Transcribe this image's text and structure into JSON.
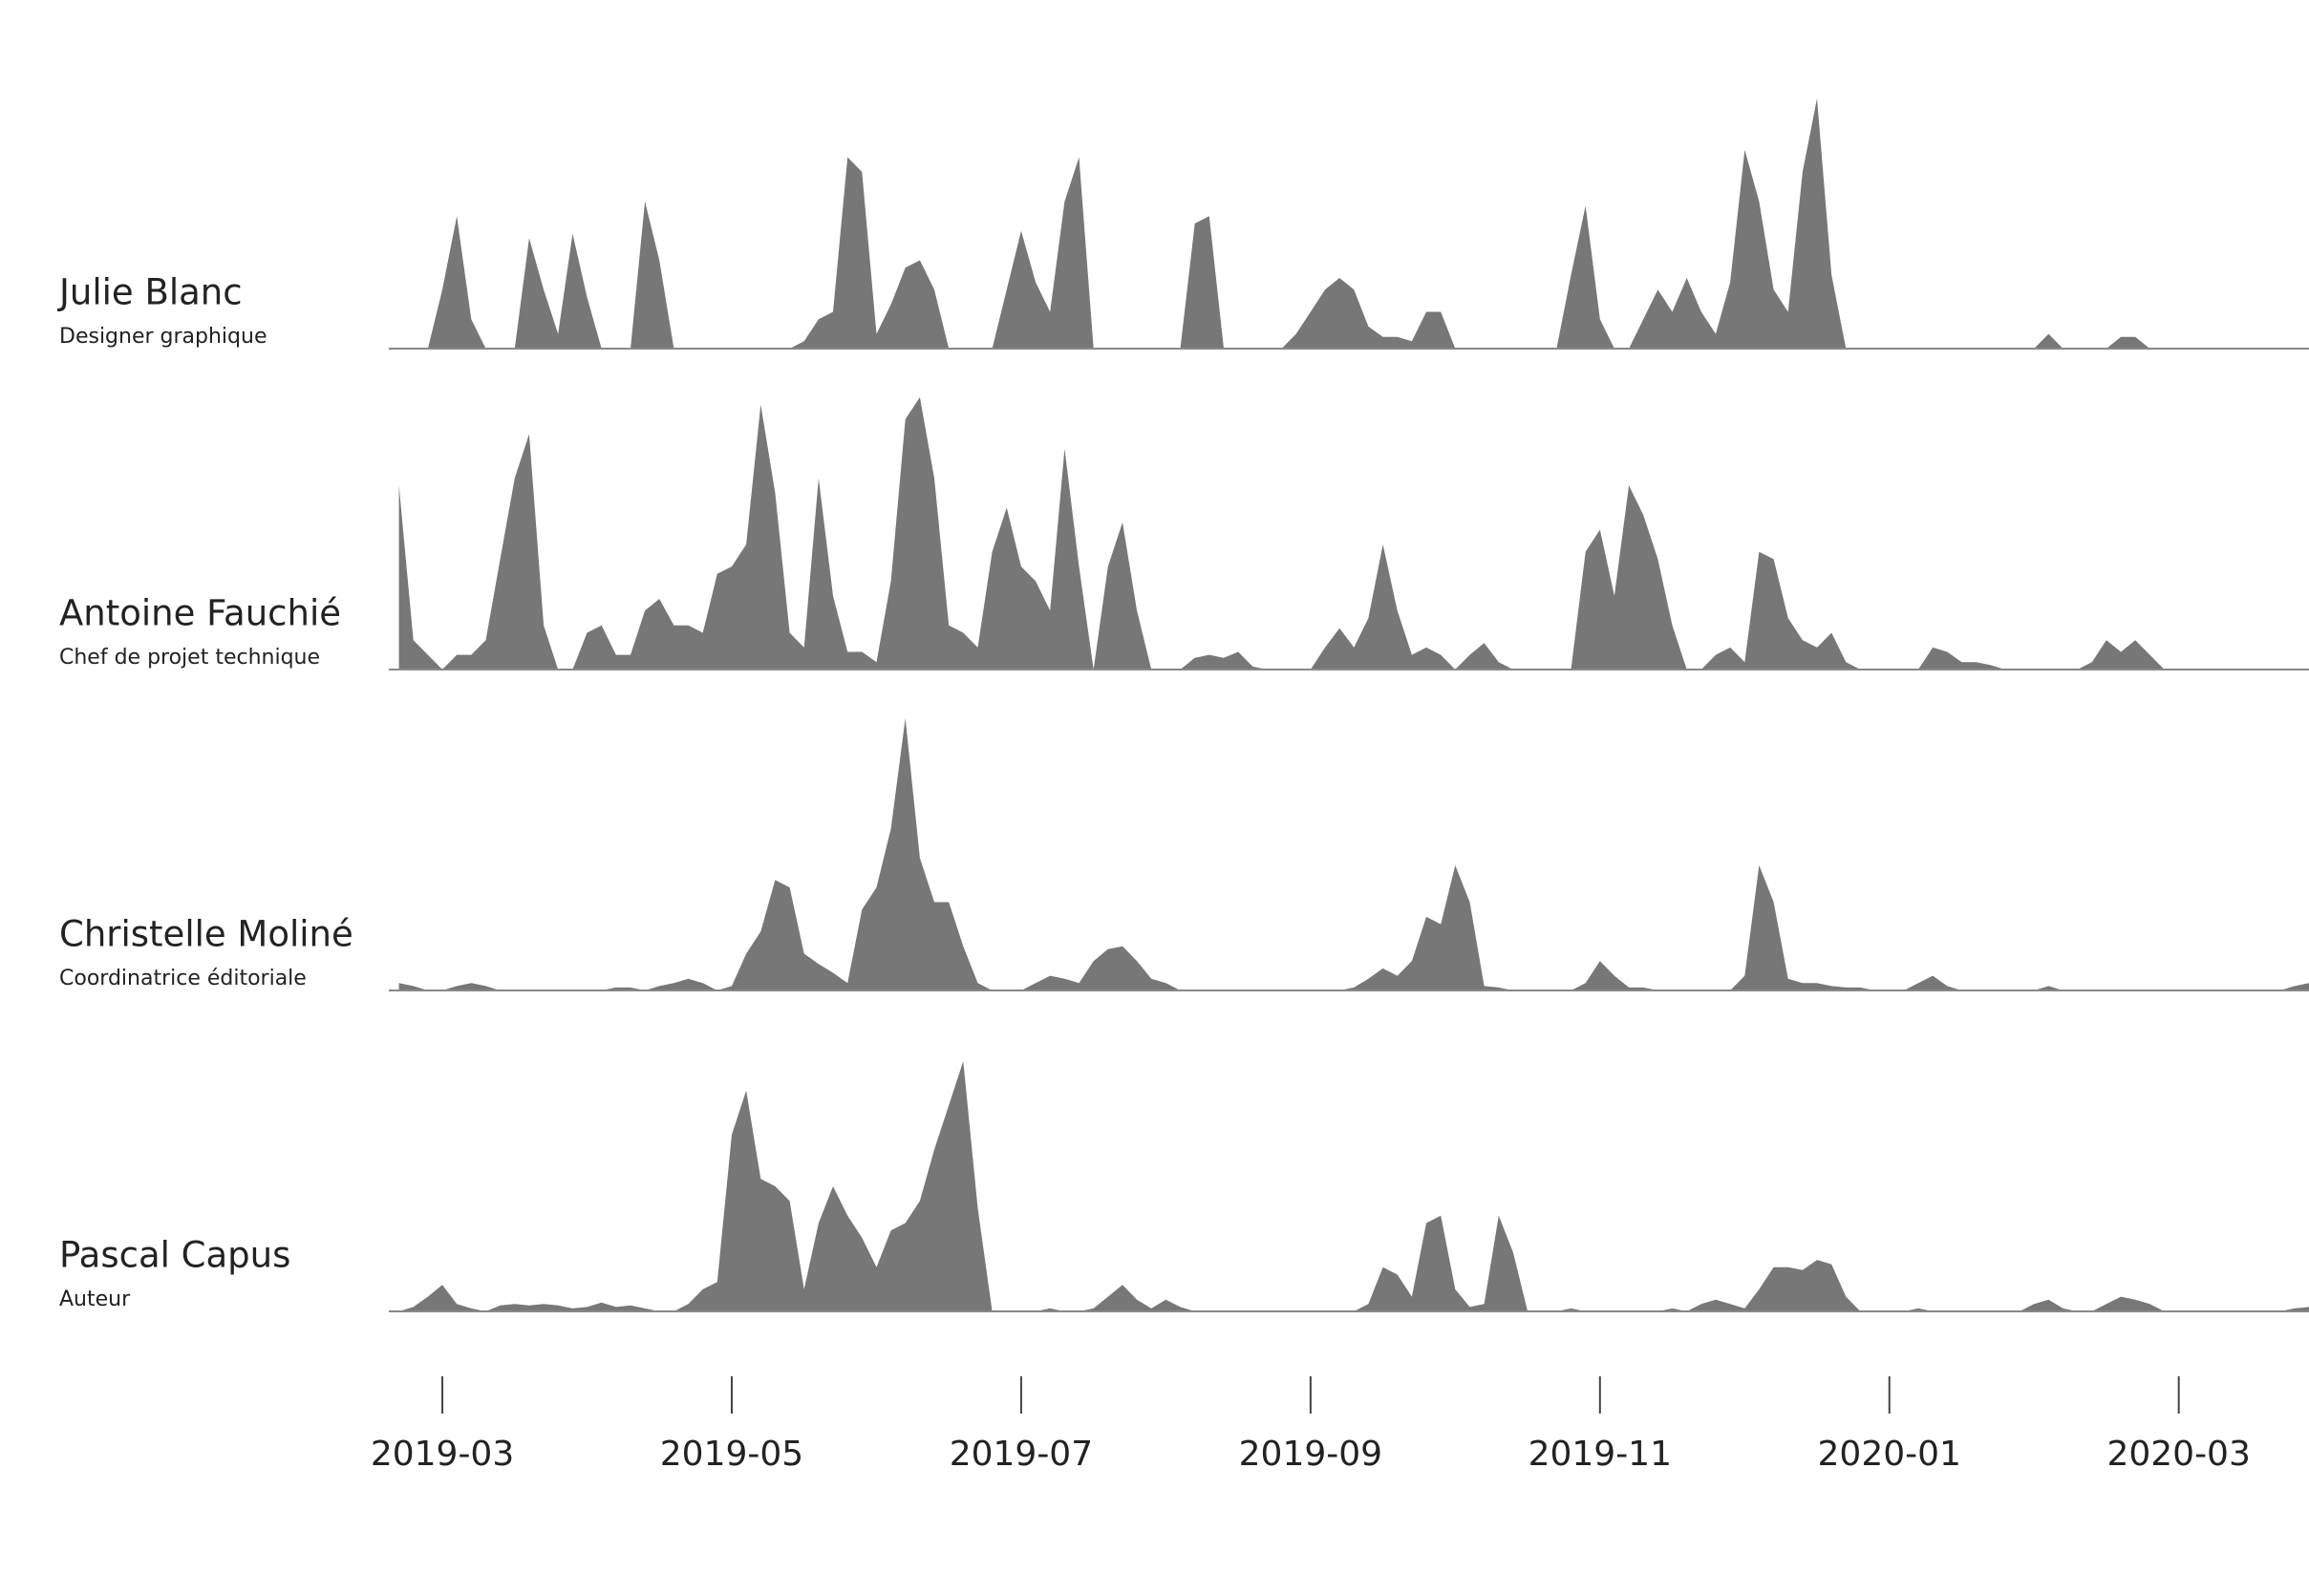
{
  "chart_data": {
    "type": "ridgeline",
    "color": "#777777",
    "x": [
      2.7,
      2.8,
      2.9,
      3.0,
      3.1,
      3.2,
      3.3,
      3.4,
      3.5,
      3.6,
      3.7,
      3.8,
      3.9,
      4.0,
      4.1,
      4.2,
      4.3,
      4.4,
      4.5,
      4.6,
      4.7,
      4.8,
      4.9,
      5.0,
      5.1,
      5.2,
      5.3,
      5.4,
      5.5,
      5.6,
      5.7,
      5.8,
      5.9,
      6.0,
      6.1,
      6.2,
      6.3,
      6.4,
      6.5,
      6.6,
      6.7,
      6.8,
      6.9,
      7.0,
      7.1,
      7.2,
      7.3,
      7.4,
      7.5,
      7.6,
      7.7,
      7.8,
      7.9,
      8.0,
      8.1,
      8.2,
      8.3,
      8.4,
      8.5,
      8.6,
      8.7,
      8.8,
      8.9,
      9.0,
      9.1,
      9.2,
      9.3,
      9.4,
      9.5,
      9.6,
      9.7,
      9.8,
      9.9,
      10.0,
      10.1,
      10.2,
      10.3,
      10.4,
      10.5,
      10.6,
      10.7,
      10.8,
      10.9,
      11.0,
      11.1,
      11.2,
      11.3,
      11.4,
      11.5,
      11.6,
      11.7,
      11.8,
      11.9,
      12.0,
      12.1,
      12.2,
      12.3,
      12.4,
      12.5,
      12.6,
      12.7,
      12.8,
      12.9,
      13.0,
      13.1,
      13.2,
      13.3,
      13.4,
      13.5,
      13.6,
      13.7,
      13.8,
      13.9,
      14.0,
      14.1,
      14.2,
      14.3,
      14.4,
      14.5,
      14.6,
      14.7,
      14.8,
      14.9,
      15.0,
      15.1,
      15.2,
      15.3,
      15.4,
      15.5,
      15.6,
      15.7,
      15.8,
      15.9
    ],
    "xlim": [
      2.63,
      15.9
    ],
    "xticks": [
      {
        "value": 3,
        "label": "2019-03"
      },
      {
        "value": 5,
        "label": "2019-05"
      },
      {
        "value": 7,
        "label": "2019-07"
      },
      {
        "value": 9,
        "label": "2019-09"
      },
      {
        "value": 11,
        "label": "2019-11"
      },
      {
        "value": 13,
        "label": "2020-01"
      },
      {
        "value": 15,
        "label": "2020-03"
      }
    ],
    "ylim": [
      0,
      218
    ],
    "series": [
      {
        "name": "Julie Blanc",
        "role": "Designer graphique",
        "values": [
          0,
          0,
          0,
          40,
          90,
          20,
          0,
          0,
          0,
          75,
          40,
          10,
          78,
          35,
          0,
          0,
          0,
          100,
          60,
          0,
          0,
          0,
          0,
          0,
          0,
          0,
          0,
          0,
          5,
          20,
          25,
          130,
          120,
          10,
          30,
          55,
          60,
          40,
          0,
          0,
          0,
          0,
          40,
          80,
          45,
          25,
          100,
          130,
          0,
          0,
          0,
          0,
          0,
          0,
          0,
          85,
          90,
          0,
          0,
          0,
          0,
          0,
          10,
          25,
          40,
          48,
          40,
          15,
          8,
          8,
          5,
          25,
          25,
          0,
          0,
          0,
          0,
          0,
          0,
          0,
          0,
          50,
          97,
          20,
          0,
          0,
          20,
          40,
          25,
          48,
          25,
          10,
          45,
          135,
          100,
          40,
          25,
          120,
          170,
          50,
          0,
          0,
          0,
          0,
          0,
          0,
          0,
          0,
          0,
          0,
          0,
          0,
          0,
          0,
          10,
          0,
          0,
          0,
          0,
          8,
          8,
          0,
          0,
          0,
          0,
          0,
          0,
          0,
          0,
          0,
          0,
          0,
          0
        ]
      },
      {
        "name": "Antoine Fauchié",
        "role": "Chef de projet technique",
        "values": [
          125,
          20,
          10,
          0,
          10,
          10,
          20,
          75,
          130,
          160,
          30,
          0,
          0,
          25,
          30,
          10,
          10,
          40,
          48,
          30,
          30,
          25,
          65,
          70,
          85,
          180,
          120,
          25,
          15,
          130,
          50,
          12,
          12,
          5,
          60,
          170,
          185,
          130,
          30,
          25,
          15,
          80,
          110,
          70,
          60,
          40,
          150,
          70,
          0,
          70,
          100,
          40,
          0,
          0,
          0,
          8,
          10,
          8,
          12,
          2,
          0,
          0,
          0,
          0,
          15,
          28,
          15,
          35,
          85,
          40,
          10,
          15,
          10,
          0,
          10,
          18,
          5,
          0,
          0,
          0,
          0,
          0,
          80,
          95,
          50,
          125,
          105,
          75,
          30,
          0,
          0,
          10,
          15,
          5,
          80,
          75,
          35,
          20,
          15,
          25,
          5,
          0,
          0,
          0,
          0,
          0,
          15,
          12,
          5,
          5,
          3,
          0,
          0,
          0,
          0,
          0,
          0,
          5,
          20,
          12,
          20,
          10,
          0,
          0,
          0,
          0,
          0,
          0,
          0,
          0,
          0,
          0,
          0
        ]
      },
      {
        "name": "Christelle Moliné",
        "role": "Coordinatrice éditoriale",
        "values": [
          5,
          3,
          0,
          0,
          3,
          5,
          3,
          0,
          0,
          0,
          0,
          0,
          0,
          0,
          0,
          2,
          2,
          0,
          3,
          5,
          8,
          5,
          0,
          3,
          25,
          40,
          75,
          70,
          25,
          18,
          12,
          5,
          55,
          70,
          110,
          185,
          90,
          60,
          60,
          30,
          5,
          0,
          0,
          0,
          5,
          10,
          8,
          5,
          20,
          28,
          30,
          20,
          8,
          5,
          0,
          0,
          0,
          0,
          0,
          0,
          0,
          0,
          0,
          0,
          0,
          0,
          2,
          8,
          15,
          10,
          20,
          50,
          45,
          85,
          60,
          3,
          2,
          0,
          0,
          0,
          0,
          0,
          5,
          20,
          10,
          2,
          2,
          0,
          0,
          0,
          0,
          0,
          0,
          10,
          85,
          60,
          8,
          5,
          5,
          3,
          2,
          2,
          0,
          0,
          0,
          5,
          10,
          3,
          0,
          0,
          0,
          0,
          0,
          0,
          3,
          0,
          0,
          0,
          0,
          0,
          0,
          0,
          0,
          0,
          0,
          0,
          0,
          0,
          0,
          0,
          0,
          3,
          5
        ]
      },
      {
        "name": "Pascal Capus",
        "role": "Auteur",
        "values": [
          0,
          3,
          10,
          18,
          5,
          2,
          0,
          4,
          5,
          4,
          5,
          4,
          2,
          3,
          6,
          3,
          4,
          2,
          0,
          0,
          5,
          15,
          20,
          120,
          150,
          90,
          85,
          75,
          15,
          60,
          85,
          65,
          50,
          30,
          55,
          60,
          75,
          110,
          140,
          170,
          70,
          0,
          0,
          0,
          0,
          2,
          0,
          0,
          2,
          10,
          18,
          8,
          2,
          8,
          3,
          0,
          0,
          0,
          0,
          0,
          0,
          0,
          0,
          0,
          0,
          0,
          0,
          5,
          30,
          25,
          10,
          60,
          65,
          15,
          3,
          5,
          65,
          40,
          0,
          0,
          0,
          2,
          0,
          0,
          0,
          0,
          0,
          0,
          2,
          0,
          5,
          8,
          5,
          2,
          15,
          30,
          30,
          28,
          35,
          32,
          10,
          0,
          0,
          0,
          0,
          2,
          0,
          0,
          0,
          0,
          0,
          0,
          0,
          5,
          8,
          2,
          0,
          0,
          5,
          10,
          8,
          5,
          0,
          0,
          0,
          0,
          0,
          0,
          0,
          0,
          0,
          2,
          3
        ]
      }
    ]
  }
}
